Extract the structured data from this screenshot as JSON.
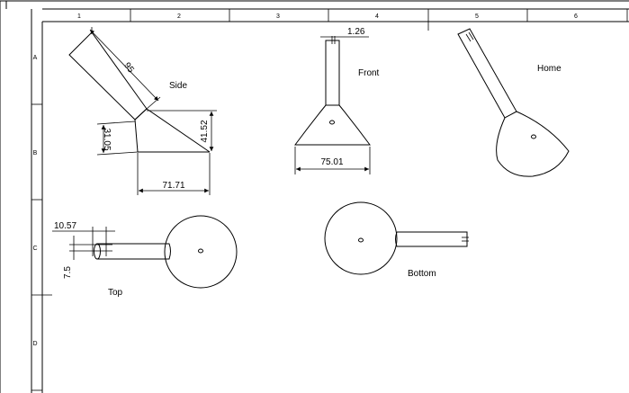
{
  "sheet": {
    "column_labels": [
      "1",
      "2",
      "3",
      "4",
      "5",
      "6"
    ],
    "row_labels": [
      "A",
      "B",
      "C",
      "D"
    ]
  },
  "views": {
    "side": "Side",
    "front": "Front",
    "home": "Home",
    "top": "Top",
    "bottom": "Bottom"
  },
  "dimensions": {
    "side_length": "95",
    "side_height_left": "31.05",
    "side_height_right": "41.52",
    "side_base_width": "71.71",
    "front_slot": "1.26",
    "front_base_width": "75.01",
    "top_handle_length": "10.57",
    "top_handle_diameter": "7.5"
  }
}
